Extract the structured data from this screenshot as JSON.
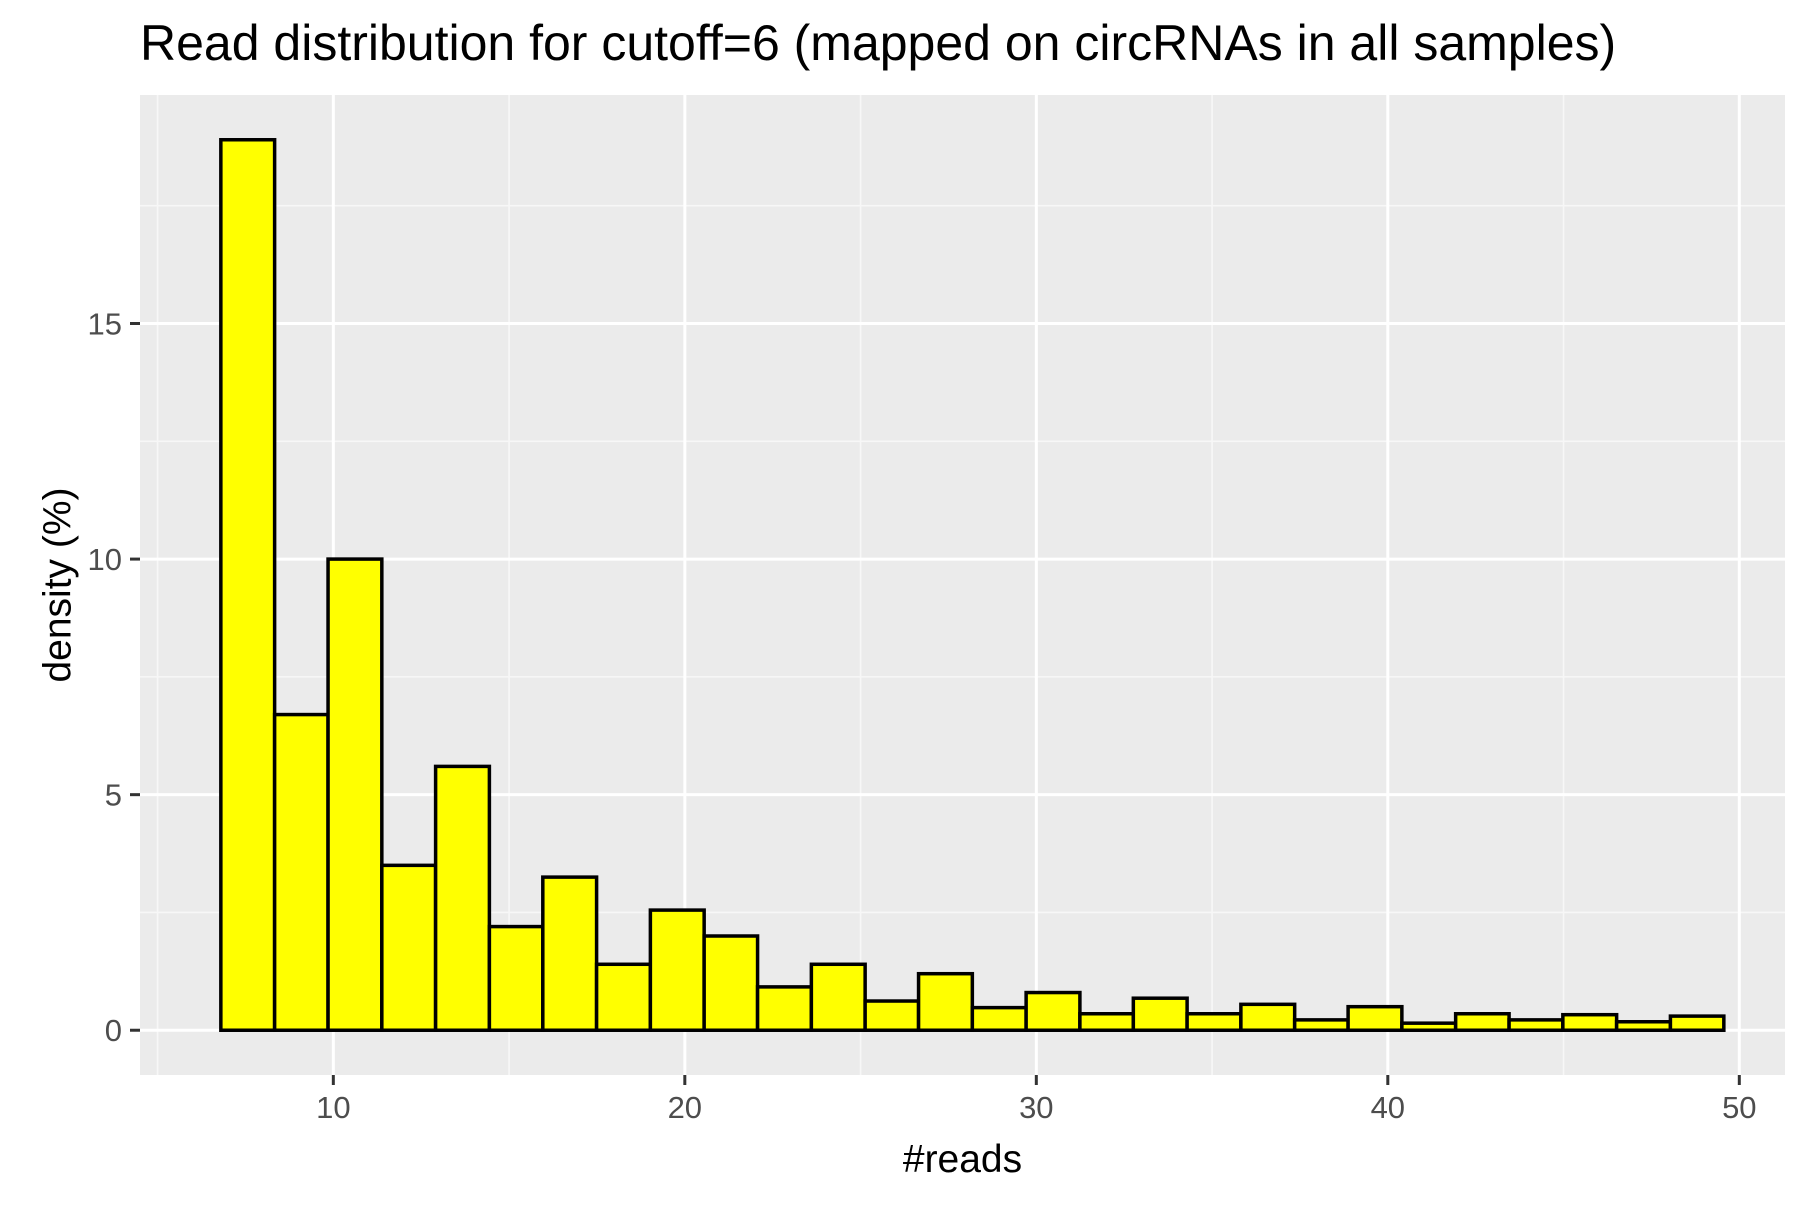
{
  "chart_data": {
    "type": "bar",
    "subtype": "histogram",
    "title": "Read distribution for cutoff=6 (mapped on circRNAs in all samples)",
    "xlabel": "#reads",
    "ylabel": "density (%)",
    "xlim": [
      4.5,
      51.3
    ],
    "ylim": [
      -0.95,
      19.85
    ],
    "x_ticks": [
      10,
      20,
      30,
      40,
      50
    ],
    "x_tick_labels": [
      "10",
      "20",
      "30",
      "40",
      "50"
    ],
    "y_ticks": [
      0,
      5,
      10,
      15
    ],
    "y_tick_labels": [
      "0",
      "5",
      "10",
      "15"
    ],
    "grid": true,
    "legend": "none",
    "colors": {
      "panel_background": "#ebebeb",
      "grid_major": "#ffffff",
      "grid_minor": "#f7f7f7",
      "bar_fill": "#ffff00",
      "bar_outline": "#000000",
      "tick_label": "#4d4d4d",
      "tick_mark": "#333333"
    },
    "bin_width": 1.53,
    "bins": [
      {
        "x0": 6.8,
        "x1": 8.33,
        "value": 18.9
      },
      {
        "x0": 8.33,
        "x1": 9.85,
        "value": 6.7
      },
      {
        "x0": 9.85,
        "x1": 11.38,
        "value": 10.0
      },
      {
        "x0": 11.38,
        "x1": 12.91,
        "value": 3.5
      },
      {
        "x0": 12.91,
        "x1": 14.44,
        "value": 5.6
      },
      {
        "x0": 14.44,
        "x1": 15.96,
        "value": 2.2
      },
      {
        "x0": 15.96,
        "x1": 17.49,
        "value": 3.25
      },
      {
        "x0": 17.49,
        "x1": 19.02,
        "value": 1.4
      },
      {
        "x0": 19.02,
        "x1": 20.55,
        "value": 2.55
      },
      {
        "x0": 20.55,
        "x1": 22.07,
        "value": 2.0
      },
      {
        "x0": 22.07,
        "x1": 23.6,
        "value": 0.92
      },
      {
        "x0": 23.6,
        "x1": 25.13,
        "value": 1.4
      },
      {
        "x0": 25.13,
        "x1": 26.65,
        "value": 0.62
      },
      {
        "x0": 26.65,
        "x1": 28.18,
        "value": 1.2
      },
      {
        "x0": 28.18,
        "x1": 29.71,
        "value": 0.48
      },
      {
        "x0": 29.71,
        "x1": 31.24,
        "value": 0.8
      },
      {
        "x0": 31.24,
        "x1": 32.76,
        "value": 0.35
      },
      {
        "x0": 32.76,
        "x1": 34.29,
        "value": 0.68
      },
      {
        "x0": 34.29,
        "x1": 35.82,
        "value": 0.35
      },
      {
        "x0": 35.82,
        "x1": 37.35,
        "value": 0.55
      },
      {
        "x0": 37.35,
        "x1": 38.87,
        "value": 0.22
      },
      {
        "x0": 38.87,
        "x1": 40.4,
        "value": 0.5
      },
      {
        "x0": 40.4,
        "x1": 41.93,
        "value": 0.15
      },
      {
        "x0": 41.93,
        "x1": 43.45,
        "value": 0.35
      },
      {
        "x0": 43.45,
        "x1": 44.98,
        "value": 0.22
      },
      {
        "x0": 44.98,
        "x1": 46.51,
        "value": 0.33
      },
      {
        "x0": 46.51,
        "x1": 48.04,
        "value": 0.18
      },
      {
        "x0": 48.04,
        "x1": 49.56,
        "value": 0.3
      }
    ]
  }
}
